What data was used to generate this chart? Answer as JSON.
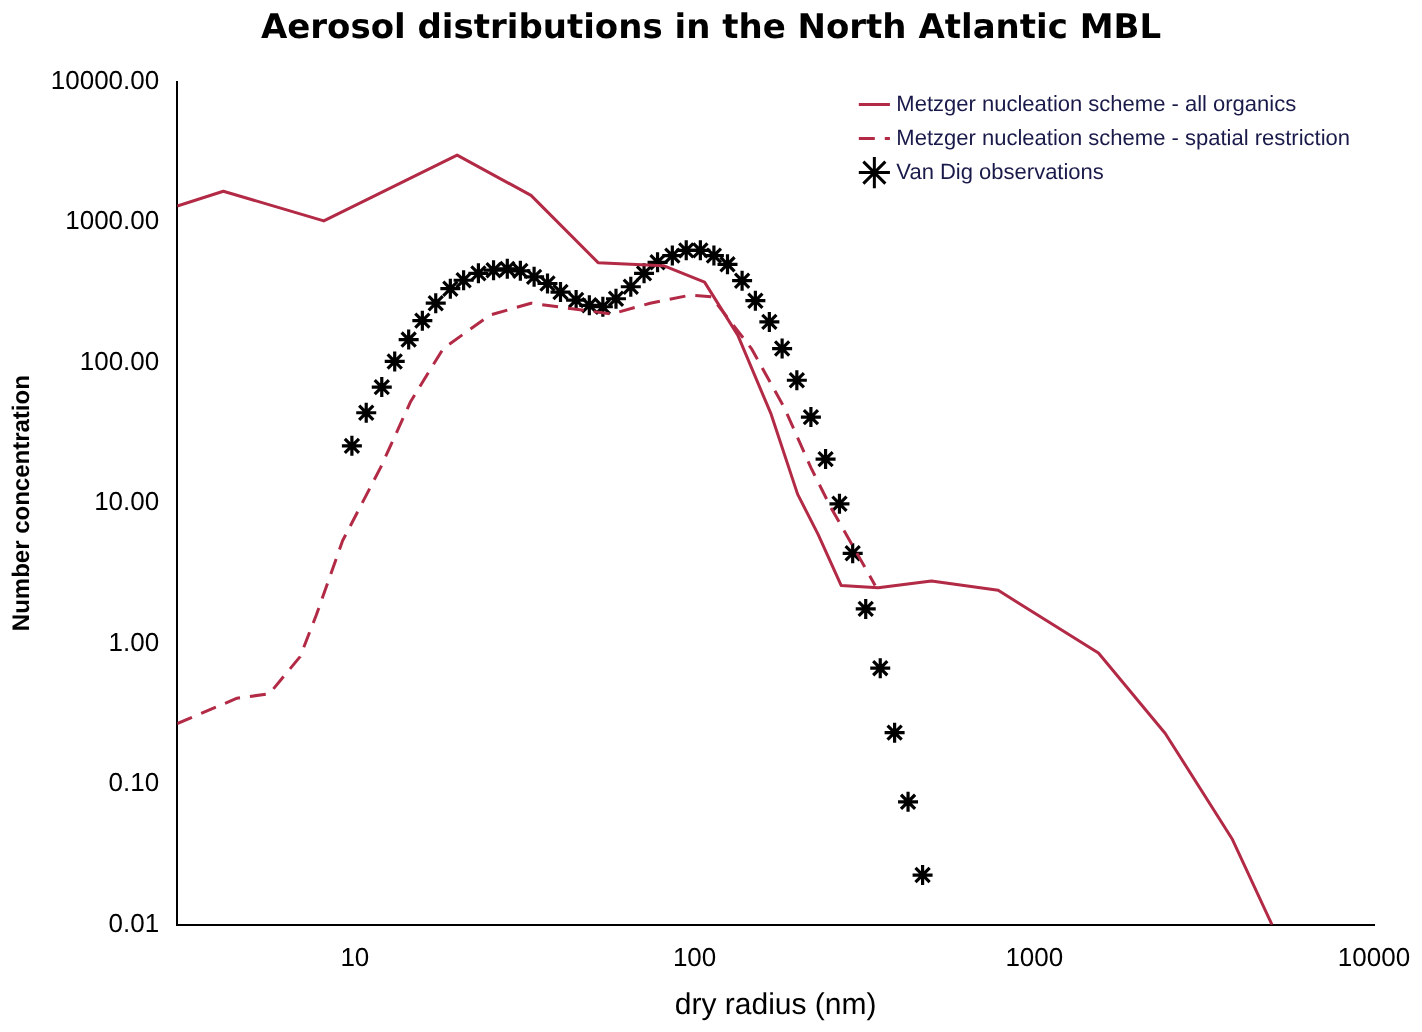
{
  "chart_data": {
    "type": "line",
    "title": "Aerosol distributions in the North Atlantic MBL",
    "xlabel": "dry radius (nm)",
    "ylabel": "Number concentration",
    "log": "xy",
    "grid": false,
    "legend": "top right",
    "xlim": [
      3,
      10000
    ],
    "xticks": [
      10,
      100,
      1000,
      10000
    ],
    "ylim": [
      0.01,
      10000
    ],
    "yticks": [
      {
        "value": 0.01,
        "label": "0.01"
      },
      {
        "value": 0.1,
        "label": "0.10"
      },
      {
        "value": 1,
        "label": "1.00"
      },
      {
        "value": 10,
        "label": "10.00"
      },
      {
        "value": 100,
        "label": "100.00"
      },
      {
        "value": 1000,
        "label": "1000.00"
      },
      {
        "value": 10000,
        "label": "10000.00"
      }
    ],
    "series": [
      {
        "name": "Metzger nucleation scheme - all organics",
        "type": "line",
        "line_style": "solid",
        "marker": "none",
        "color": "#b22a45",
        "x": [
          3,
          4.1,
          8.1,
          20,
          33,
          52,
          81,
          107,
          134,
          168,
          201,
          231,
          270,
          347,
          498,
          783,
          1545,
          2430,
          3820,
          5010
        ],
        "values": [
          1300,
          1660,
          1020,
          3000,
          1550,
          515,
          490,
          374,
          157,
          43,
          11.6,
          6.0,
          2.6,
          2.5,
          2.8,
          2.4,
          0.86,
          0.23,
          0.041,
          0.01
        ]
      },
      {
        "name": "Metzger nucleation scheme - spatial restriction",
        "type": "line",
        "line_style": "dashed",
        "marker": "none",
        "color": "#b22a45",
        "x": [
          3,
          4.5,
          5.6,
          6.9,
          7.7,
          9.2,
          11.9,
          14.6,
          18.2,
          25,
          33,
          43,
          57,
          74,
          97,
          112,
          147,
          184,
          220,
          252,
          324,
          340
        ],
        "values": [
          0.27,
          0.41,
          0.44,
          0.81,
          1.6,
          5.4,
          17.9,
          53,
          126,
          218,
          265,
          243,
          222,
          265,
          302,
          295,
          126,
          47.5,
          17.9,
          9.3,
          3.2,
          2.6
        ]
      },
      {
        "name": "Van Dig observations",
        "type": "scatter",
        "marker": "cross",
        "color": "#000000",
        "x": [
          9.8,
          10.8,
          12.0,
          13.1,
          14.4,
          15.8,
          17.3,
          19.1,
          20.9,
          23.1,
          25.6,
          28.1,
          30.7,
          33.7,
          36.9,
          40.3,
          44.8,
          49.0,
          53.7,
          58.7,
          64.9,
          71.0,
          77.8,
          86,
          94.5,
          104,
          114,
          125,
          138,
          151,
          166,
          181,
          200,
          220,
          243,
          267,
          292,
          319,
          352,
          388,
          425,
          469
        ],
        "values": [
          25.6,
          44,
          67,
          102,
          146,
          199,
          265,
          336,
          386,
          432,
          455,
          465,
          450,
          408,
          366,
          318,
          279,
          256,
          250,
          285,
          347,
          432,
          518,
          578,
          630,
          630,
          578,
          501,
          383,
          276,
          195,
          126,
          75,
          41,
          20.6,
          9.9,
          4.4,
          1.77,
          0.67,
          0.233,
          0.075,
          0.0226
        ]
      }
    ]
  }
}
